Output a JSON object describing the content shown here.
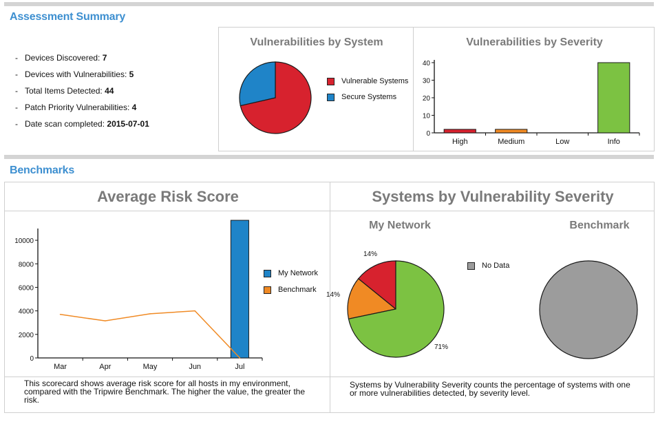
{
  "summary": {
    "title": "Assessment Summary",
    "items": [
      {
        "label": "Devices Discovered: ",
        "value": "7"
      },
      {
        "label": "Devices with Vulnerabilities: ",
        "value": "5"
      },
      {
        "label": "Total Items Detected: ",
        "value": "44"
      },
      {
        "label": "Patch Priority Vulnerabilities: ",
        "value": "4"
      },
      {
        "label": "Date scan completed: ",
        "value": "2015-07-01"
      }
    ]
  },
  "benchmarks": {
    "title": "Benchmarks",
    "risk_title": "Average Risk Score",
    "risk_desc": "This scorecard shows average risk score for all hosts in my environment, compared with the Tripwire Benchmark. The higher the value, the greater the risk.",
    "systems_title": "Systems by Vulnerability Severity",
    "systems_desc": "Systems by Vulnerability Severity counts the percentage of systems with one or more vulnerabilities detected, by severity level.",
    "my_network_label": "My Network",
    "benchmark_label": "Benchmark"
  },
  "colors": {
    "red": "#d7222e",
    "blue": "#1f84c8",
    "orange": "#f08a24",
    "green": "#7cc242",
    "gray": "#9c9c9c"
  },
  "chart_data": [
    {
      "type": "pie",
      "title": "Vulnerabilities by System",
      "labels": [
        "Vulnerable Systems",
        "Secure Systems"
      ],
      "values": [
        5,
        2
      ],
      "colors": [
        "#d7222e",
        "#1f84c8"
      ],
      "legend": "right"
    },
    {
      "type": "bar",
      "title": "Vulnerabilities by Severity",
      "categories": [
        "High",
        "Medium",
        "Low",
        "Info"
      ],
      "values": [
        2,
        2,
        0,
        40
      ],
      "colors": [
        "#d7222e",
        "#f08a24",
        "#ffffff",
        "#7cc242"
      ],
      "ylim": [
        0,
        40
      ],
      "yticks": [
        0,
        10,
        20,
        30,
        40
      ],
      "grid": false
    },
    {
      "type": "bar",
      "title": "Average Risk Score",
      "categories": [
        "Mar",
        "Apr",
        "May",
        "Jun",
        "Jul"
      ],
      "ylim": [
        0,
        11000
      ],
      "yticks": [
        0,
        2000,
        4000,
        6000,
        8000,
        10000
      ],
      "series": [
        {
          "name": "My Network",
          "kind": "bar",
          "color": "#1f84c8",
          "values": [
            null,
            null,
            null,
            null,
            11700
          ]
        },
        {
          "name": "Benchmark",
          "kind": "line",
          "color": "#f08a24",
          "values": [
            3700,
            3150,
            3750,
            4000,
            0
          ]
        }
      ],
      "legend": "right"
    },
    {
      "type": "pie",
      "title": "My Network",
      "values": [
        14,
        14,
        71
      ],
      "data_labels": [
        "14%",
        "14%",
        "71%"
      ],
      "colors": [
        "#d7222e",
        "#f08a24",
        "#7cc242"
      ]
    },
    {
      "type": "pie",
      "title": "Benchmark",
      "labels": [
        "No Data"
      ],
      "values": [
        100
      ],
      "colors": [
        "#9c9c9c"
      ],
      "legend": "top-left"
    }
  ]
}
